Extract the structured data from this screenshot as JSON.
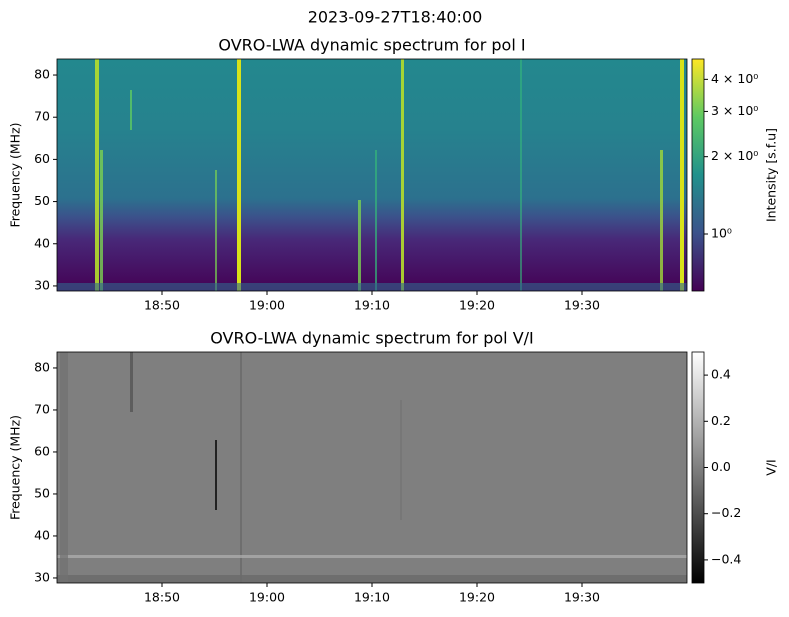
{
  "suptitle": "2023-09-27T18:40:00",
  "chart_data": [
    {
      "type": "heatmap",
      "title": "OVRO-LWA dynamic spectrum for pol I",
      "ylabel": "Frequency (MHz)",
      "xlim": [
        0,
        60
      ],
      "xticks": [
        {
          "value": 10,
          "label": "18:50"
        },
        {
          "value": 20,
          "label": "19:00"
        },
        {
          "value": 30,
          "label": "19:10"
        },
        {
          "value": 40,
          "label": "19:20"
        },
        {
          "value": 50,
          "label": "19:30"
        }
      ],
      "ylim": [
        28.8,
        83.8
      ],
      "yticks": [
        30,
        40,
        50,
        60,
        70,
        80
      ],
      "colormap": "viridis",
      "colorbar": {
        "label": "Intensity [s.f.u]",
        "scale": "log",
        "lim": [
          0.6,
          4.8
        ],
        "ticks": [
          {
            "value": 1,
            "label": "10⁰"
          },
          {
            "value": 2,
            "label": "2 × 10⁰"
          },
          {
            "value": 3,
            "label": "3 × 10⁰"
          },
          {
            "value": 4,
            "label": "4 × 10⁰"
          }
        ]
      }
    },
    {
      "type": "heatmap",
      "title": "OVRO-LWA dynamic spectrum for pol V/I",
      "ylabel": "Frequency (MHz)",
      "xlim": [
        0,
        60
      ],
      "xticks": [
        {
          "value": 10,
          "label": "18:50"
        },
        {
          "value": 20,
          "label": "19:00"
        },
        {
          "value": 30,
          "label": "19:10"
        },
        {
          "value": 40,
          "label": "19:20"
        },
        {
          "value": 50,
          "label": "19:30"
        }
      ],
      "ylim": [
        28.8,
        83.8
      ],
      "yticks": [
        30,
        40,
        50,
        60,
        70,
        80
      ],
      "colormap": "gray",
      "colorbar": {
        "label": "V/I",
        "scale": "linear",
        "lim": [
          -0.5,
          0.5
        ],
        "ticks": [
          {
            "value": -0.4,
            "label": "−0.4"
          },
          {
            "value": -0.2,
            "label": "−0.2"
          },
          {
            "value": 0,
            "label": "0.0"
          },
          {
            "value": 0.2,
            "label": "0.2"
          },
          {
            "value": 0.4,
            "label": "0.4"
          }
        ]
      }
    }
  ]
}
